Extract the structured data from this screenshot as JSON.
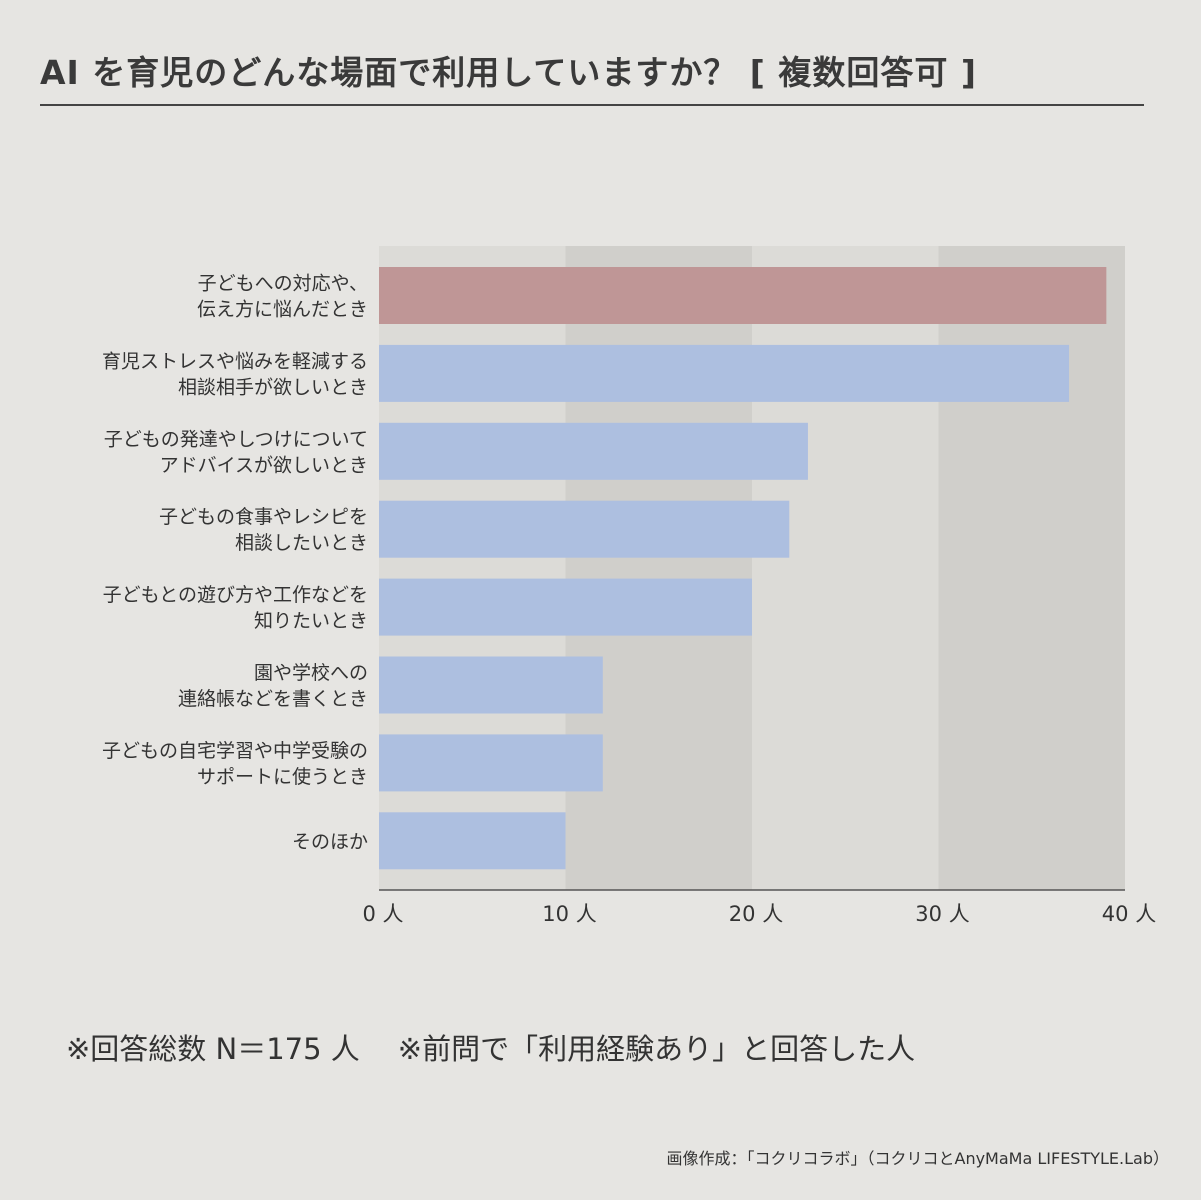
{
  "header": {
    "title": "AI を育児のどんな場面で利用していますか？ [ 複数回答可 ]"
  },
  "chart_data": {
    "type": "bar",
    "orientation": "horizontal",
    "title": "AI を育児のどんな場面で利用していますか？ [ 複数回答可 ]",
    "categories": [
      [
        "子どもへの対応や、",
        "伝え方に悩んだとき"
      ],
      [
        "育児ストレスや悩みを軽減する",
        "相談相手が欲しいとき"
      ],
      [
        "子どもの発達やしつけについて",
        "アドバイスが欲しいとき"
      ],
      [
        "子どもの食事やレシピを",
        "相談したいとき"
      ],
      [
        "子どもとの遊び方や工作などを",
        "知りたいとき"
      ],
      [
        "園や学校への",
        "連絡帳などを書くとき"
      ],
      [
        "子どもの自宅学習や中学受験の",
        "サポートに使うとき"
      ],
      [
        "そのほか"
      ]
    ],
    "values": [
      39,
      37,
      23,
      22,
      20,
      12,
      12,
      10
    ],
    "highlight_index": 0,
    "xlim": [
      0,
      40
    ],
    "xticks": [
      0,
      10,
      20,
      30,
      40
    ],
    "tick_labels": [
      "0 人",
      "10 人",
      "20 人",
      "30 人",
      "40 人"
    ],
    "colors": {
      "highlight": "#bf9696",
      "bar": "#adbfe0",
      "band_light": "#dcdbd7",
      "band_dark": "#d0cfcb",
      "axis": "#555555"
    }
  },
  "footer": {
    "note_total": "※回答総数 N＝175 人",
    "note_condition": "※前問で「利用経験あり」と回答した人",
    "credit": "画像作成：「コクリコラボ」（コクリコとAnyMaMa LIFESTYLE.Lab）"
  }
}
